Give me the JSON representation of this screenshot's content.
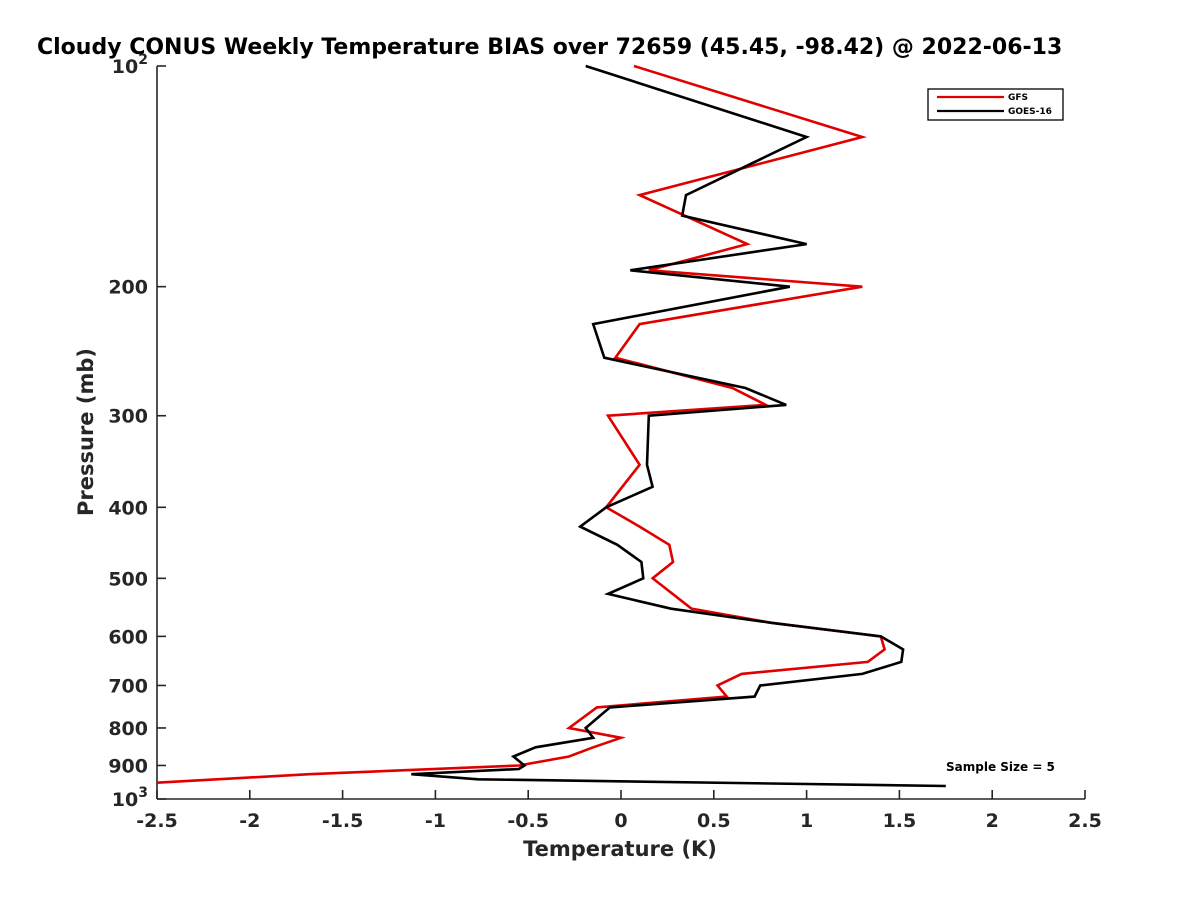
{
  "chart_data": {
    "type": "line",
    "title": "Cloudy CONUS Weekly Temperature BIAS over 72659 (45.45, -98.42) @ 2022-06-13",
    "xlabel": "Temperature (K)",
    "ylabel": "Pressure (mb)",
    "xlim": [
      -2.5,
      2.5
    ],
    "ylim": [
      100,
      1000
    ],
    "y_scale": "log",
    "y_reversed": true,
    "grid": false,
    "legend_position": "top-right",
    "x_ticks": [
      "-2.5",
      "-2",
      "-1.5",
      "-1",
      "-0.5",
      "0",
      "0.5",
      "1",
      "1.5",
      "2",
      "2.5"
    ],
    "x_tick_values": [
      -2.5,
      -2,
      -1.5,
      -1,
      -0.5,
      0,
      0.5,
      1,
      1.5,
      2,
      2.5
    ],
    "y_ticks_plain": [
      {
        "label": "200",
        "value": 200
      },
      {
        "label": "300",
        "value": 300
      },
      {
        "label": "400",
        "value": 400
      },
      {
        "label": "500",
        "value": 500
      },
      {
        "label": "600",
        "value": 600
      },
      {
        "label": "700",
        "value": 700
      },
      {
        "label": "800",
        "value": 800
      },
      {
        "label": "900",
        "value": 900
      }
    ],
    "y_ticks_exp": [
      {
        "base": "10",
        "exp": "2",
        "value": 100
      },
      {
        "base": "10",
        "exp": "3",
        "value": 1000
      }
    ],
    "annotation": "Sample Size = 5",
    "series": [
      {
        "name": "GFS",
        "color": "#e00000",
        "points": [
          [
            0.07,
            100
          ],
          [
            1.3,
            125
          ],
          [
            0.1,
            150
          ],
          [
            0.68,
            175
          ],
          [
            0.15,
            190
          ],
          [
            1.3,
            200
          ],
          [
            0.1,
            225
          ],
          [
            -0.03,
            250
          ],
          [
            0.6,
            275
          ],
          [
            0.78,
            290
          ],
          [
            -0.07,
            300
          ],
          [
            0.1,
            350
          ],
          [
            -0.08,
            400
          ],
          [
            0.1,
            425
          ],
          [
            0.26,
            450
          ],
          [
            0.28,
            475
          ],
          [
            0.17,
            500
          ],
          [
            0.38,
            550
          ],
          [
            0.81,
            575
          ],
          [
            1.4,
            600
          ],
          [
            1.42,
            625
          ],
          [
            1.33,
            650
          ],
          [
            0.65,
            675
          ],
          [
            0.52,
            700
          ],
          [
            0.57,
            725
          ],
          [
            -0.13,
            750
          ],
          [
            -0.28,
            800
          ],
          [
            0.0,
            825
          ],
          [
            -0.15,
            850
          ],
          [
            -0.28,
            875
          ],
          [
            -0.55,
            900
          ],
          [
            -1.68,
            925
          ],
          [
            -2.5,
            950
          ]
        ]
      },
      {
        "name": "GOES-16",
        "color": "#000000",
        "points": [
          [
            -0.19,
            100
          ],
          [
            1.0,
            125
          ],
          [
            0.35,
            150
          ],
          [
            0.33,
            160
          ],
          [
            1.0,
            175
          ],
          [
            0.05,
            190
          ],
          [
            0.91,
            200
          ],
          [
            -0.15,
            225
          ],
          [
            -0.09,
            250
          ],
          [
            0.67,
            275
          ],
          [
            0.89,
            290
          ],
          [
            0.15,
            300
          ],
          [
            0.14,
            350
          ],
          [
            0.17,
            375
          ],
          [
            -0.08,
            400
          ],
          [
            -0.22,
            425
          ],
          [
            -0.02,
            450
          ],
          [
            0.11,
            475
          ],
          [
            0.12,
            500
          ],
          [
            -0.07,
            525
          ],
          [
            0.27,
            550
          ],
          [
            0.81,
            575
          ],
          [
            1.4,
            600
          ],
          [
            1.52,
            625
          ],
          [
            1.51,
            650
          ],
          [
            1.3,
            675
          ],
          [
            0.75,
            700
          ],
          [
            0.72,
            725
          ],
          [
            -0.06,
            750
          ],
          [
            -0.19,
            800
          ],
          [
            -0.15,
            825
          ],
          [
            -0.46,
            850
          ],
          [
            -0.58,
            875
          ],
          [
            -0.52,
            900
          ],
          [
            -0.55,
            910
          ],
          [
            -1.13,
            925
          ],
          [
            -0.77,
            940
          ],
          [
            1.75,
            960
          ]
        ]
      }
    ]
  }
}
